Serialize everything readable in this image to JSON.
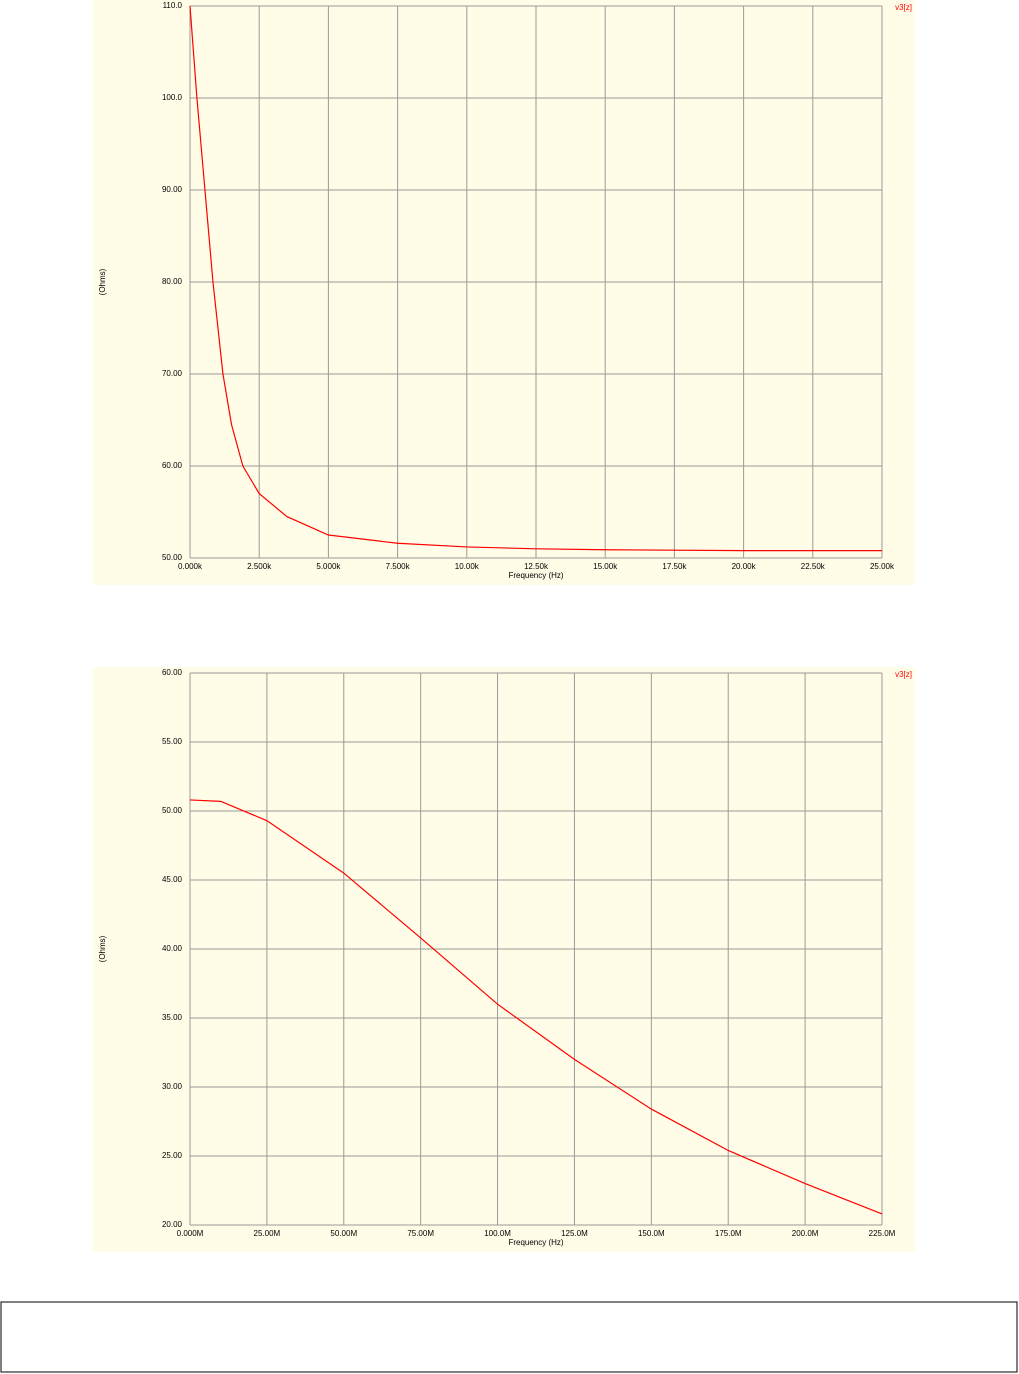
{
  "chart_data": [
    {
      "type": "line",
      "y_label": "(Ohms)",
      "x_label": "Frequency (Hz)",
      "x": [
        0,
        250,
        540,
        830,
        1190,
        1500,
        1910,
        2500,
        3500,
        5000,
        7500,
        10000,
        12500,
        15000,
        20000,
        25000
      ],
      "series": [
        {
          "name": "v3[z]",
          "color": "#ff0000",
          "values": [
            110,
            100,
            90,
            80,
            70,
            64.5,
            60,
            57,
            54.5,
            52.5,
            51.6,
            51.2,
            51.0,
            50.9,
            50.8,
            50.8
          ]
        }
      ],
      "xlim": [
        0,
        25000
      ],
      "ylim": [
        50,
        110
      ],
      "grid": true,
      "xticks": [
        {
          "value": 0,
          "label": "0.000k"
        },
        {
          "value": 2500,
          "label": "2.500k"
        },
        {
          "value": 5000,
          "label": "5.000k"
        },
        {
          "value": 7500,
          "label": "7.500k"
        },
        {
          "value": 10000,
          "label": "10.00k"
        },
        {
          "value": 12500,
          "label": "12.50k"
        },
        {
          "value": 15000,
          "label": "15.00k"
        },
        {
          "value": 17500,
          "label": "17.50k"
        },
        {
          "value": 20000,
          "label": "20.00k"
        },
        {
          "value": 22500,
          "label": "22.50k"
        },
        {
          "value": 25000,
          "label": "25.00k"
        }
      ],
      "yticks": [
        {
          "value": 50,
          "label": "50.00"
        },
        {
          "value": 60,
          "label": "60.00"
        },
        {
          "value": 70,
          "label": "70.00"
        },
        {
          "value": 80,
          "label": "80.00"
        },
        {
          "value": 90,
          "label": "90.00"
        },
        {
          "value": 100,
          "label": "100.0"
        },
        {
          "value": 110,
          "label": "110.0"
        }
      ]
    },
    {
      "type": "line",
      "y_label": "(Ohms)",
      "x_label": "Frequency (Hz)",
      "x": [
        0,
        10000000,
        25000000,
        50000000,
        75000000,
        100000000,
        125000000,
        150000000,
        175000000,
        200000000,
        225000000
      ],
      "series": [
        {
          "name": "v3[z]",
          "color": "#ff0000",
          "values": [
            50.8,
            50.7,
            49.3,
            45.5,
            40.8,
            36.0,
            32.0,
            28.4,
            25.4,
            23.0,
            20.8
          ]
        }
      ],
      "xlim": [
        0,
        225000000
      ],
      "ylim": [
        20,
        60
      ],
      "grid": true,
      "xticks": [
        {
          "value": 0,
          "label": "0.000M"
        },
        {
          "value": 25000000,
          "label": "25.00M"
        },
        {
          "value": 50000000,
          "label": "50.00M"
        },
        {
          "value": 75000000,
          "label": "75.00M"
        },
        {
          "value": 100000000,
          "label": "100.0M"
        },
        {
          "value": 125000000,
          "label": "125.0M"
        },
        {
          "value": 150000000,
          "label": "150.0M"
        },
        {
          "value": 175000000,
          "label": "175.0M"
        },
        {
          "value": 200000000,
          "label": "200.0M"
        },
        {
          "value": 225000000,
          "label": "225.0M"
        }
      ],
      "yticks": [
        {
          "value": 20,
          "label": "20.00"
        },
        {
          "value": 25,
          "label": "25.00"
        },
        {
          "value": 30,
          "label": "30.00"
        },
        {
          "value": 35,
          "label": "35.00"
        },
        {
          "value": 40,
          "label": "40.00"
        },
        {
          "value": 45,
          "label": "45.00"
        },
        {
          "value": 50,
          "label": "50.00"
        },
        {
          "value": 55,
          "label": "55.00"
        },
        {
          "value": 60,
          "label": "60.00"
        }
      ]
    }
  ]
}
